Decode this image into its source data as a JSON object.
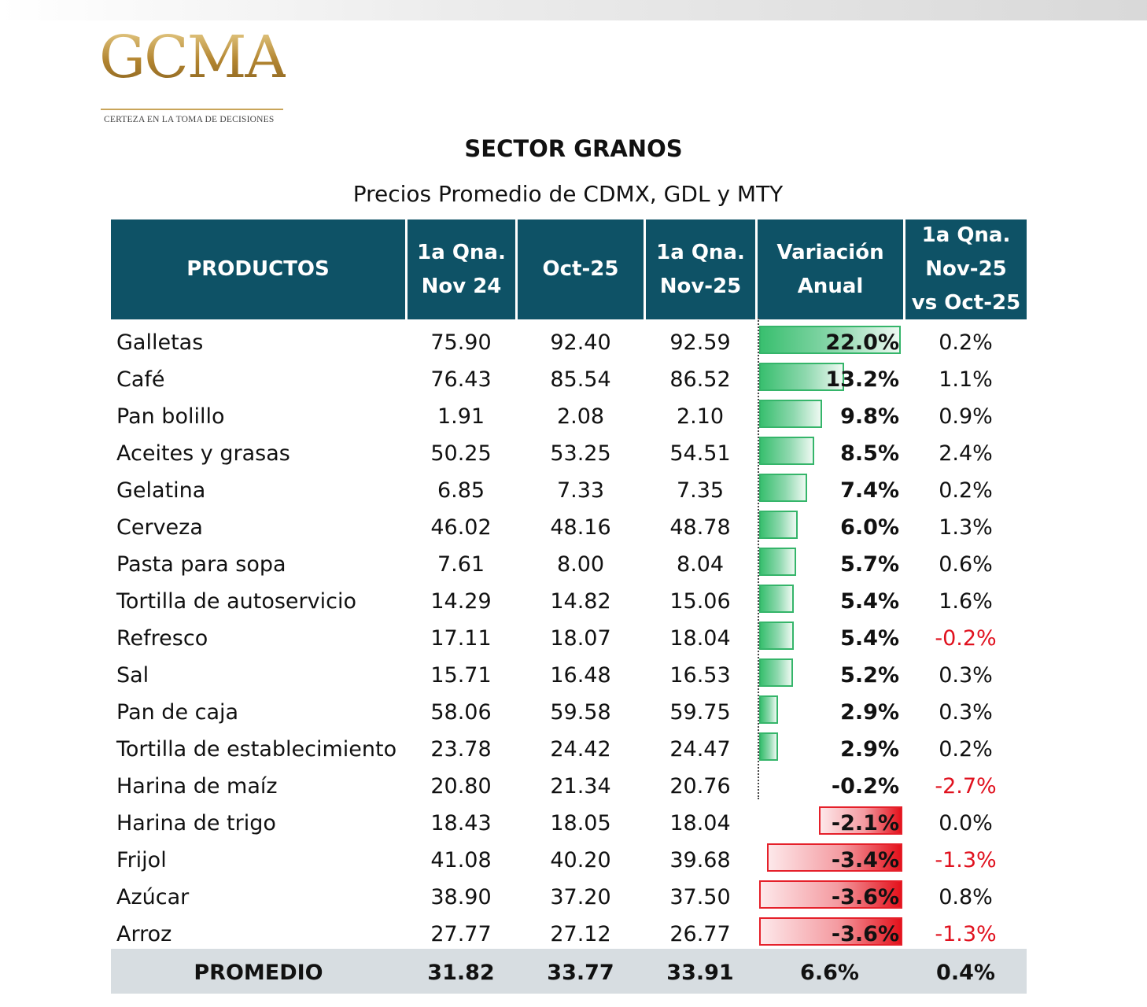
{
  "logo": {
    "wordmark": "GCMA",
    "tagline": "CERTEZA EN LA TOMA DE DECISIONES"
  },
  "colors": {
    "header_bg": "#0e5266",
    "positive_bar": "#39bf6f",
    "negative_bar": "#e4121c",
    "negative_text": "#e0111e",
    "total_row_bg": "#d7dde1"
  },
  "chart_data": {
    "type": "table",
    "title": "SECTOR GRANOS",
    "subtitle": "Precios Promedio de CDMX, GDL y MTY",
    "headers": [
      "PRODUCTOS",
      "1a Qna.\nNov 24",
      "Oct-25",
      "1a Qna.\nNov-25",
      "Variación\nAnual",
      "1a Qna.\nNov-25\nvs Oct-25"
    ],
    "rows": [
      {
        "product": "Galletas",
        "nov24": "75.90",
        "oct25": "92.40",
        "nov25": "92.59",
        "annual": "22.0%",
        "annual_value": 22.0,
        "monthly": "0.2%",
        "monthly_value": 0.2
      },
      {
        "product": "Café",
        "nov24": "76.43",
        "oct25": "85.54",
        "nov25": "86.52",
        "annual": "13.2%",
        "annual_value": 13.2,
        "monthly": "1.1%",
        "monthly_value": 1.1
      },
      {
        "product": "Pan bolillo",
        "nov24": "1.91",
        "oct25": "2.08",
        "nov25": "2.10",
        "annual": "9.8%",
        "annual_value": 9.8,
        "monthly": "0.9%",
        "monthly_value": 0.9
      },
      {
        "product": "Aceites y grasas",
        "nov24": "50.25",
        "oct25": "53.25",
        "nov25": "54.51",
        "annual": "8.5%",
        "annual_value": 8.5,
        "monthly": "2.4%",
        "monthly_value": 2.4
      },
      {
        "product": "Gelatina",
        "nov24": "6.85",
        "oct25": "7.33",
        "nov25": "7.35",
        "annual": "7.4%",
        "annual_value": 7.4,
        "monthly": "0.2%",
        "monthly_value": 0.2
      },
      {
        "product": "Cerveza",
        "nov24": "46.02",
        "oct25": "48.16",
        "nov25": "48.78",
        "annual": "6.0%",
        "annual_value": 6.0,
        "monthly": "1.3%",
        "monthly_value": 1.3
      },
      {
        "product": "Pasta para sopa",
        "nov24": "7.61",
        "oct25": "8.00",
        "nov25": "8.04",
        "annual": "5.7%",
        "annual_value": 5.7,
        "monthly": "0.6%",
        "monthly_value": 0.6
      },
      {
        "product": "Tortilla de autoservicio",
        "nov24": "14.29",
        "oct25": "14.82",
        "nov25": "15.06",
        "annual": "5.4%",
        "annual_value": 5.4,
        "monthly": "1.6%",
        "monthly_value": 1.6
      },
      {
        "product": "Refresco",
        "nov24": "17.11",
        "oct25": "18.07",
        "nov25": "18.04",
        "annual": "5.4%",
        "annual_value": 5.4,
        "monthly": "-0.2%",
        "monthly_value": -0.2
      },
      {
        "product": "Sal",
        "nov24": "15.71",
        "oct25": "16.48",
        "nov25": "16.53",
        "annual": "5.2%",
        "annual_value": 5.2,
        "monthly": "0.3%",
        "monthly_value": 0.3
      },
      {
        "product": "Pan de caja",
        "nov24": "58.06",
        "oct25": "59.58",
        "nov25": "59.75",
        "annual": "2.9%",
        "annual_value": 2.9,
        "monthly": "0.3%",
        "monthly_value": 0.3
      },
      {
        "product": "Tortilla de establecimiento",
        "nov24": "23.78",
        "oct25": "24.42",
        "nov25": "24.47",
        "annual": "2.9%",
        "annual_value": 2.9,
        "monthly": "0.2%",
        "monthly_value": 0.2
      },
      {
        "product": "Harina de maíz",
        "nov24": "20.80",
        "oct25": "21.34",
        "nov25": "20.76",
        "annual": "-0.2%",
        "annual_value": -0.2,
        "monthly": "-2.7%",
        "monthly_value": -2.7
      },
      {
        "product": "Harina de trigo",
        "nov24": "18.43",
        "oct25": "18.05",
        "nov25": "18.04",
        "annual": "-2.1%",
        "annual_value": -2.1,
        "monthly": "0.0%",
        "monthly_value": 0.0
      },
      {
        "product": "Frijol",
        "nov24": "41.08",
        "oct25": "40.20",
        "nov25": "39.68",
        "annual": "-3.4%",
        "annual_value": -3.4,
        "monthly": "-1.3%",
        "monthly_value": -1.3
      },
      {
        "product": "Azúcar",
        "nov24": "38.90",
        "oct25": "37.20",
        "nov25": "37.50",
        "annual": "-3.6%",
        "annual_value": -3.6,
        "monthly": "0.8%",
        "monthly_value": 0.8
      },
      {
        "product": "Arroz",
        "nov24": "27.77",
        "oct25": "27.12",
        "nov25": "26.77",
        "annual": "-3.6%",
        "annual_value": -3.6,
        "monthly": "-1.3%",
        "monthly_value": -1.3
      }
    ],
    "total": {
      "label": "PROMEDIO",
      "nov24": "31.82",
      "oct25": "33.77",
      "nov25": "33.91",
      "annual": "6.6%",
      "annual_value": 6.6,
      "monthly": "0.4%",
      "monthly_value": 0.4
    }
  }
}
